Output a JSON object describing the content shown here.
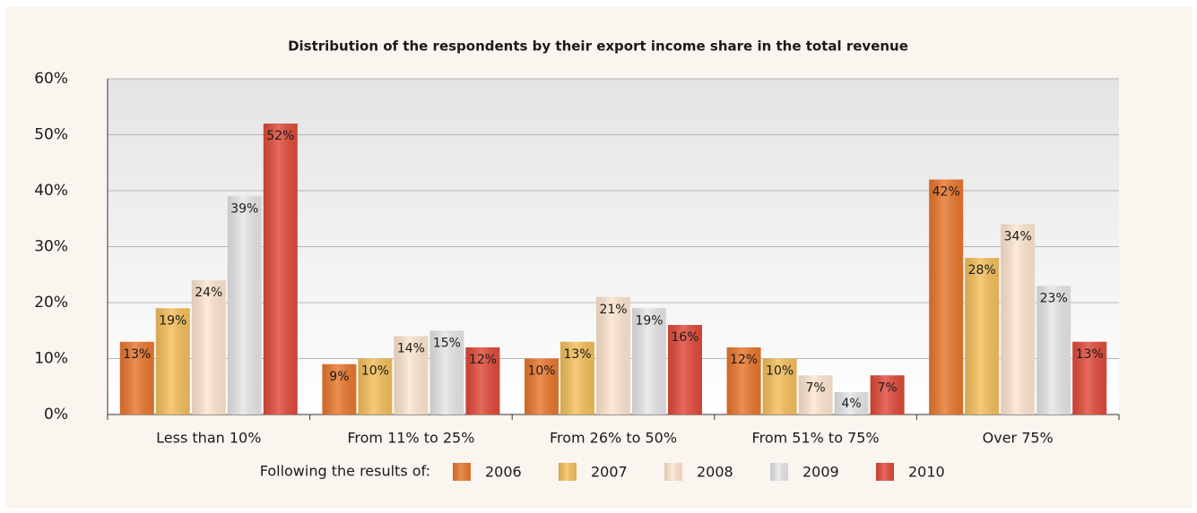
{
  "chart_data": {
    "type": "bar",
    "title": "Distribution of the respondents by their export income share in the total revenue",
    "legend_title": "Following the results of:",
    "categories": [
      "Less than 10%",
      "From 11% to 25%",
      "From 26% to 50%",
      "From 51% to 75%",
      "Over 75%"
    ],
    "series": [
      {
        "name": "2006",
        "color": "#e8772e",
        "values": [
          13,
          9,
          10,
          12,
          42
        ],
        "value_labels": [
          "13%",
          "9%",
          "10%",
          "12%",
          "42%"
        ]
      },
      {
        "name": "2007",
        "color": "#f4bf5c",
        "values": [
          19,
          10,
          13,
          10,
          28
        ],
        "value_labels": [
          "19%",
          "10%",
          "13%",
          "10%",
          "28%"
        ]
      },
      {
        "name": "2008",
        "color": "#fde6cf",
        "values": [
          24,
          14,
          21,
          7,
          34
        ],
        "value_labels": [
          "24%",
          "14%",
          "21%",
          "7%",
          "34%"
        ]
      },
      {
        "name": "2009",
        "color": "#e6e6e8",
        "values": [
          39,
          15,
          19,
          4,
          23
        ],
        "value_labels": [
          "39%",
          "15%",
          "19%",
          "4%",
          "23%"
        ]
      },
      {
        "name": "2010",
        "color": "#e04a3a",
        "values": [
          52,
          12,
          16,
          7,
          13
        ],
        "value_labels": [
          "52%",
          "12%",
          "16%",
          "7%",
          "13%"
        ]
      }
    ],
    "ylim": [
      0,
      60
    ],
    "yticks": [
      {
        "value": 0,
        "label": "0%"
      },
      {
        "value": 10,
        "label": "10%"
      },
      {
        "value": 20,
        "label": "20%"
      },
      {
        "value": 30,
        "label": "30%"
      },
      {
        "value": 40,
        "label": "40%"
      },
      {
        "value": 50,
        "label": "50%"
      },
      {
        "value": 60,
        "label": "60%"
      }
    ],
    "grid": true
  }
}
